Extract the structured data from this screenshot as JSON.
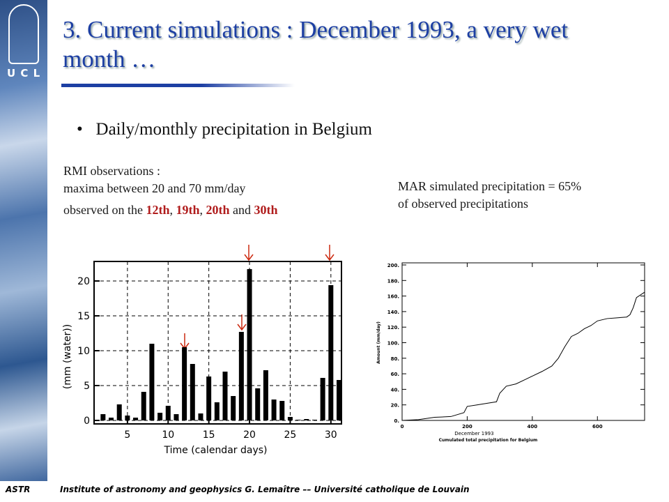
{
  "slide": {
    "logo": "U C L",
    "title": "3. Current simulations : December 1993, a very wet month …",
    "bullet": "Daily/monthly precipitation in Belgium",
    "rmi_lines": [
      "RMI observations :",
      "maxima between 20 and 70 mm/day"
    ],
    "rmi_days": [
      {
        "text": "observed on the ",
        "color": "#1a1a1a"
      },
      {
        "text": "12th",
        "color": "#b01c1c"
      },
      {
        "text": ", ",
        "color": "#1a1a1a"
      },
      {
        "text": "19th",
        "color": "#b01c1c"
      },
      {
        "text": ", ",
        "color": "#1a1a1a"
      },
      {
        "text": "20th",
        "color": "#b01c1c"
      },
      {
        "text": " and ",
        "color": "#1a1a1a"
      },
      {
        "text": "30th",
        "color": "#b01c1c"
      }
    ],
    "mar_lines": [
      "MAR simulated precipitation = 65%",
      "of observed precipitations"
    ],
    "footer_left": "ASTR",
    "footer": "Institute of astronomy and geophysics G. Lemaître –– Université catholique de Louvain"
  },
  "chart_data": [
    {
      "type": "bar",
      "xlabel": "Time (calendar days)",
      "ylabel": "(mm (water))",
      "color": "#000000",
      "grid": true,
      "x": [
        1,
        2,
        3,
        4,
        5,
        6,
        7,
        8,
        9,
        10,
        11,
        12,
        13,
        14,
        15,
        16,
        17,
        18,
        19,
        20,
        21,
        22,
        23,
        24,
        25,
        26,
        27,
        28,
        29,
        30,
        31
      ],
      "values": [
        0,
        0.9,
        0.4,
        2.3,
        0.7,
        0.4,
        4.1,
        11.0,
        1.1,
        2.1,
        0.9,
        10.5,
        8.1,
        1.0,
        6.3,
        2.6,
        7.0,
        3.5,
        12.7,
        21.7,
        4.6,
        7.2,
        3.0,
        2.8,
        0.5,
        0.1,
        0.2,
        0.1,
        6.1,
        19.4,
        5.8
      ],
      "xlim": [
        0.9,
        31.3
      ],
      "ylim": [
        -0.5,
        22.8
      ],
      "xticks": [
        5,
        10,
        15,
        20,
        25,
        30
      ],
      "yticks": [
        0,
        5,
        10,
        15,
        20
      ]
    },
    {
      "type": "line",
      "title": "December 1993",
      "subtitle": "Cumulated total precipitation for Belgium",
      "ylabel": "Amount (mm/day)",
      "color": "#000000",
      "x": [
        0,
        50,
        100,
        150,
        190,
        200,
        230,
        260,
        290,
        300,
        320,
        350,
        380,
        400,
        430,
        460,
        480,
        500,
        520,
        540,
        560,
        580,
        600,
        630,
        660,
        690,
        700,
        710,
        720,
        745
      ],
      "values": [
        0,
        1,
        4,
        5,
        10,
        18,
        20,
        22,
        24,
        35,
        44,
        47,
        53,
        57,
        63,
        70,
        80,
        95,
        108,
        112,
        118,
        122,
        128,
        131,
        132,
        133,
        136,
        145,
        158,
        165
      ],
      "xlim": [
        0,
        745
      ],
      "ylim": [
        0,
        200
      ],
      "xticks": [
        0,
        200,
        400,
        600
      ],
      "yticks": [
        {
          "value": 0,
          "label": "0."
        },
        {
          "value": 20,
          "label": "20."
        },
        {
          "value": 40,
          "label": "40."
        },
        {
          "value": 60,
          "label": "60."
        },
        {
          "value": 80,
          "label": "80."
        },
        {
          "value": 100,
          "label": "100."
        },
        {
          "value": 120,
          "label": "120."
        },
        {
          "value": 140,
          "label": "140."
        },
        {
          "value": 160,
          "label": "160."
        },
        {
          "value": 180,
          "label": "180."
        },
        {
          "value": 200,
          "label": "200."
        }
      ]
    }
  ]
}
